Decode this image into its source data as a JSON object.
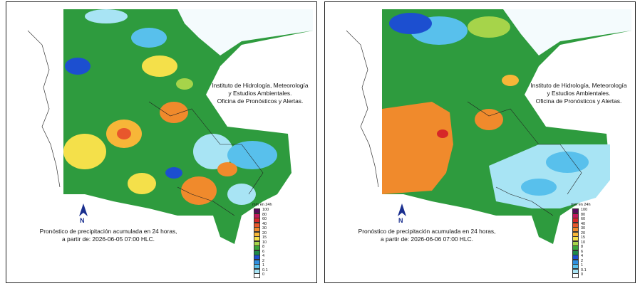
{
  "panels": [
    {
      "id": "left",
      "institute_lines": [
        "Instituto de Hidrología, Meteorología",
        "y Estudios Ambientales.",
        "Oficina de Pronósticos y Alertas."
      ],
      "caption_lines": [
        "Pronóstico de precipitación acumulada en 24 horas,",
        "a partir de: 2026-06-05 07:00 HLC."
      ],
      "north_label": "N",
      "dominant": "wet"
    },
    {
      "id": "right",
      "institute_lines": [
        "Instituto de Hidrología, Meteorología",
        "y Estudios Ambientales.",
        "Oficina de Pronósticos y Alertas."
      ],
      "caption_lines": [
        "Pronóstico de precipitación acumulada en 24 horas,",
        "a partir de: 2026-06-06 07:00 HLC."
      ],
      "north_label": "N",
      "dominant": "orange-west"
    }
  ],
  "legend": {
    "title": "mm en 24h",
    "levels": [
      {
        "label": "100",
        "color": "#5a0a5c"
      },
      {
        "label": "80",
        "color": "#c2185b"
      },
      {
        "label": "60",
        "color": "#d62728"
      },
      {
        "label": "40",
        "color": "#e8572c"
      },
      {
        "label": "30",
        "color": "#f08a2c"
      },
      {
        "label": "20",
        "color": "#f7b638"
      },
      {
        "label": "15",
        "color": "#f4e04a"
      },
      {
        "label": "10",
        "color": "#a6d44a"
      },
      {
        "label": "8",
        "color": "#3aa63a"
      },
      {
        "label": "6",
        "color": "#1e8a4a"
      },
      {
        "label": "4",
        "color": "#1c4fd0"
      },
      {
        "label": "2",
        "color": "#2f8fe0"
      },
      {
        "label": "1",
        "color": "#58c0ec"
      },
      {
        "label": "0.1",
        "color": "#a8e4f4"
      },
      {
        "label": "0",
        "color": "#ffffff"
      }
    ]
  }
}
